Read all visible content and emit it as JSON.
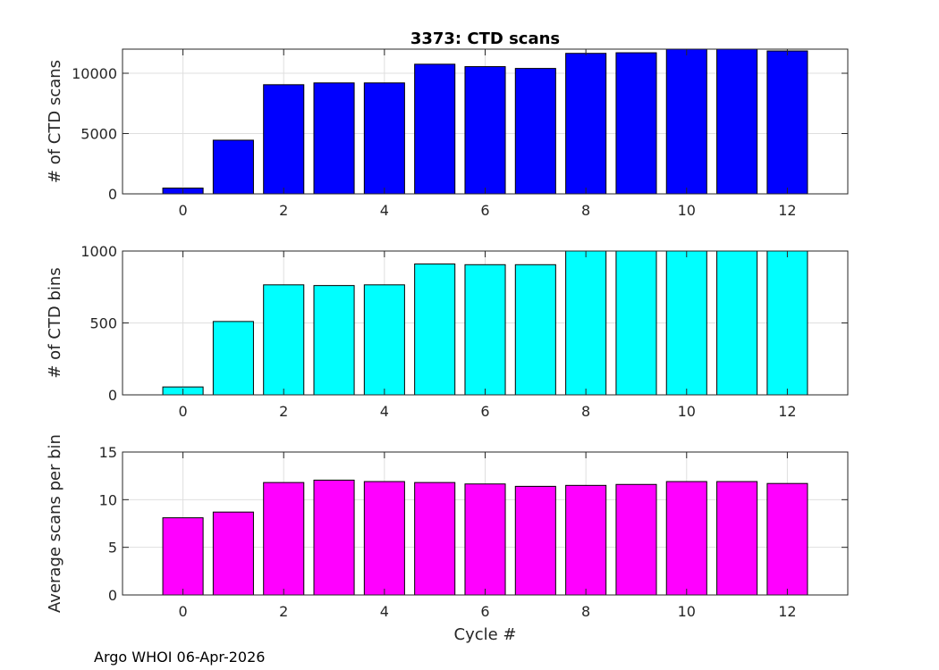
{
  "figure": {
    "footer": "Argo WHOI 06-Apr-2026"
  },
  "chart_data": [
    {
      "type": "bar",
      "title": "3373: CTD scans",
      "xlabel": "",
      "ylabel": "# of CTD scans",
      "color": "#0000ff",
      "x": [
        0,
        1,
        2,
        3,
        4,
        5,
        6,
        7,
        8,
        9,
        10,
        11,
        12
      ],
      "values": [
        480,
        4450,
        9050,
        9200,
        9200,
        10750,
        10550,
        10400,
        11650,
        11700,
        12000,
        12000,
        11850
      ],
      "xlim": [
        -1.2,
        13.2
      ],
      "ylim": [
        0,
        12000
      ],
      "xticks": [
        0,
        2,
        4,
        6,
        8,
        10,
        12
      ],
      "yticks": [
        0,
        5000,
        10000
      ],
      "grid": true
    },
    {
      "type": "bar",
      "title": "",
      "xlabel": "",
      "ylabel": "# of CTD bins",
      "color": "#00ffff",
      "x": [
        0,
        1,
        2,
        3,
        4,
        5,
        6,
        7,
        8,
        9,
        10,
        11,
        12
      ],
      "values": [
        55,
        510,
        765,
        760,
        765,
        910,
        905,
        905,
        1000,
        1000,
        1000,
        1000,
        1000
      ],
      "xlim": [
        -1.2,
        13.2
      ],
      "ylim": [
        0,
        1000
      ],
      "xticks": [
        0,
        2,
        4,
        6,
        8,
        10,
        12
      ],
      "yticks": [
        0,
        500,
        1000
      ],
      "grid": true
    },
    {
      "type": "bar",
      "title": "",
      "xlabel": "Cycle #",
      "ylabel": "Average scans per bin",
      "color": "#ff00ff",
      "x": [
        0,
        1,
        2,
        3,
        4,
        5,
        6,
        7,
        8,
        9,
        10,
        11,
        12
      ],
      "values": [
        8.1,
        8.7,
        11.8,
        12.05,
        11.9,
        11.8,
        11.65,
        11.4,
        11.5,
        11.6,
        11.9,
        11.9,
        11.7
      ],
      "xlim": [
        -1.2,
        13.2
      ],
      "ylim": [
        0,
        15
      ],
      "xticks": [
        0,
        2,
        4,
        6,
        8,
        10,
        12
      ],
      "yticks": [
        0,
        5,
        10,
        15
      ],
      "grid": true
    }
  ]
}
